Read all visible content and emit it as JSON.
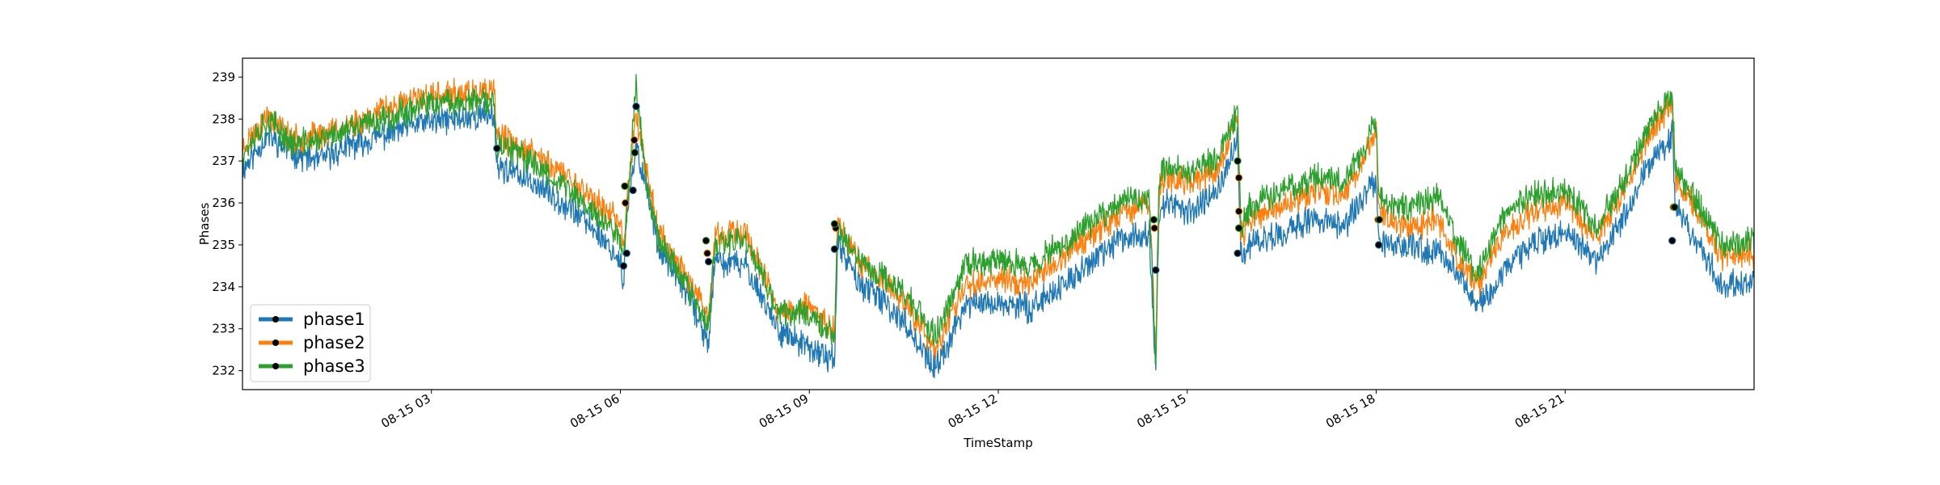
{
  "chart_data": {
    "type": "line",
    "title": "",
    "xlabel": "TimeStamp",
    "ylabel": "Phases",
    "x_tick_labels": [
      "08-15 03",
      "08-15 06",
      "08-15 09",
      "08-15 12",
      "08-15 15",
      "08-15 18",
      "08-15 21"
    ],
    "y_ticks": [
      232,
      233,
      234,
      235,
      236,
      237,
      238,
      239
    ],
    "ylim": [
      231.55,
      239.45
    ],
    "grid": false,
    "legend_position": "lower-left",
    "colors": {
      "phase1": "#1f77b4",
      "phase2": "#ff7f0e",
      "phase3": "#2ca02c",
      "marker": "#000000"
    },
    "x_unit": "hour",
    "xlim": [
      0.0,
      24.0
    ],
    "series": [
      {
        "name": "phase1",
        "x": [
          0.0,
          0.4,
          0.8,
          1.2,
          1.6,
          2.2,
          2.8,
          3.4,
          4.0,
          4.04,
          4.6,
          5.2,
          5.7,
          6.0,
          6.05,
          6.1,
          6.25,
          6.4,
          6.6,
          7.0,
          7.4,
          7.5,
          8.0,
          8.5,
          9.0,
          9.4,
          9.45,
          9.8,
          10.5,
          11.0,
          11.5,
          12.0,
          12.5,
          13.0,
          13.5,
          14.0,
          14.4,
          14.5,
          14.55,
          14.6,
          15.0,
          15.5,
          15.8,
          15.85,
          16.0,
          16.5,
          17.0,
          17.5,
          18.0,
          18.04,
          18.5,
          19.0,
          19.3,
          19.4,
          19.6,
          20.0,
          20.5,
          21.0,
          21.5,
          22.0,
          22.3,
          22.7,
          22.75,
          23.0,
          23.5,
          24.0
        ],
        "values": [
          236.8,
          237.6,
          237.2,
          237.0,
          237.3,
          237.6,
          237.9,
          238.0,
          238.1,
          236.9,
          236.5,
          235.9,
          235.2,
          234.6,
          234.0,
          235.7,
          237.3,
          236.5,
          235.0,
          234.0,
          232.7,
          234.6,
          234.5,
          233.0,
          232.5,
          232.3,
          235.0,
          234.1,
          233.2,
          232.0,
          233.6,
          233.6,
          233.5,
          234.0,
          234.6,
          235.2,
          235.3,
          232.0,
          235.7,
          236.0,
          235.8,
          236.3,
          237.5,
          234.8,
          235.0,
          235.3,
          235.6,
          235.5,
          236.5,
          235.0,
          235.0,
          234.8,
          234.4,
          234.1,
          233.5,
          234.3,
          235.1,
          235.3,
          234.6,
          235.8,
          236.9,
          237.6,
          236.1,
          235.3,
          234.0,
          234.2
        ]
      },
      {
        "name": "phase2",
        "x": [
          0.0,
          0.4,
          0.8,
          1.2,
          1.6,
          2.2,
          2.8,
          3.4,
          4.0,
          4.04,
          4.6,
          5.2,
          5.7,
          6.0,
          6.05,
          6.1,
          6.25,
          6.4,
          6.6,
          7.0,
          7.4,
          7.5,
          8.0,
          8.5,
          9.0,
          9.4,
          9.45,
          9.8,
          10.5,
          11.0,
          11.5,
          12.0,
          12.5,
          13.0,
          13.5,
          14.0,
          14.4,
          14.5,
          14.55,
          14.6,
          15.0,
          15.5,
          15.8,
          15.85,
          16.0,
          16.5,
          17.0,
          17.5,
          18.0,
          18.04,
          18.5,
          19.0,
          19.3,
          19.4,
          19.6,
          20.0,
          20.5,
          21.0,
          21.5,
          22.0,
          22.3,
          22.7,
          22.75,
          23.0,
          23.5,
          24.0
        ],
        "values": [
          237.3,
          238.1,
          237.5,
          237.6,
          237.8,
          238.2,
          238.5,
          238.6,
          238.6,
          237.6,
          237.2,
          236.6,
          235.9,
          235.5,
          234.9,
          236.0,
          238.2,
          236.9,
          235.3,
          234.4,
          233.2,
          235.2,
          235.3,
          233.4,
          233.5,
          233.0,
          235.6,
          234.6,
          233.7,
          232.5,
          234.1,
          234.2,
          234.1,
          234.7,
          235.3,
          235.8,
          236.0,
          232.5,
          236.2,
          236.6,
          236.5,
          236.8,
          238.0,
          235.2,
          235.6,
          235.9,
          236.3,
          236.2,
          237.7,
          235.8,
          235.4,
          235.6,
          234.6,
          234.5,
          234.0,
          235.2,
          235.8,
          236.0,
          235.2,
          236.5,
          237.5,
          238.4,
          236.6,
          236.0,
          234.7,
          234.8
        ]
      },
      {
        "name": "phase3",
        "x": [
          0.0,
          0.4,
          0.8,
          1.2,
          1.6,
          2.2,
          2.8,
          3.4,
          4.0,
          4.04,
          4.6,
          5.2,
          5.7,
          6.0,
          6.05,
          6.1,
          6.25,
          6.4,
          6.6,
          7.0,
          7.4,
          7.5,
          8.0,
          8.5,
          9.0,
          9.4,
          9.45,
          9.8,
          10.5,
          11.0,
          11.5,
          12.0,
          12.5,
          13.0,
          13.5,
          14.0,
          14.4,
          14.5,
          14.55,
          14.6,
          15.0,
          15.5,
          15.8,
          15.85,
          16.0,
          16.5,
          17.0,
          17.5,
          18.0,
          18.04,
          18.5,
          19.0,
          19.3,
          19.4,
          19.6,
          20.0,
          20.5,
          21.0,
          21.5,
          22.0,
          22.3,
          22.7,
          22.75,
          23.0,
          23.5,
          24.0
        ],
        "values": [
          237.2,
          238.0,
          237.4,
          237.5,
          237.7,
          238.0,
          238.3,
          238.4,
          238.4,
          237.4,
          237.0,
          236.3,
          235.6,
          235.2,
          234.6,
          235.8,
          238.8,
          236.7,
          235.2,
          234.2,
          233.0,
          235.0,
          235.1,
          233.4,
          233.4,
          232.8,
          235.4,
          234.6,
          233.9,
          232.8,
          234.6,
          234.6,
          234.5,
          235.0,
          235.6,
          236.1,
          236.0,
          232.2,
          236.5,
          236.9,
          236.7,
          237.1,
          238.2,
          235.4,
          235.9,
          236.3,
          236.6,
          236.5,
          237.9,
          236.1,
          235.9,
          236.2,
          235.0,
          234.8,
          234.3,
          235.6,
          236.2,
          236.3,
          235.4,
          236.7,
          237.7,
          238.6,
          236.8,
          236.2,
          235.0,
          235.1
        ]
      }
    ],
    "markers": [
      {
        "series": "phase1",
        "x": 4.04,
        "y": 237.3
      },
      {
        "series": "phase1",
        "x": 6.05,
        "y": 234.5
      },
      {
        "series": "phase1",
        "x": 6.1,
        "y": 234.8
      },
      {
        "series": "phase1",
        "x": 6.2,
        "y": 236.3
      },
      {
        "series": "phase1",
        "x": 6.25,
        "y": 238.3
      },
      {
        "series": "phase1",
        "x": 7.4,
        "y": 234.6
      },
      {
        "series": "phase1",
        "x": 9.4,
        "y": 234.9
      },
      {
        "series": "phase1",
        "x": 14.5,
        "y": 234.4
      },
      {
        "series": "phase1",
        "x": 15.8,
        "y": 234.8
      },
      {
        "series": "phase1",
        "x": 18.04,
        "y": 235.0
      },
      {
        "series": "phase1",
        "x": 22.7,
        "y": 235.1
      },
      {
        "series": "phase2",
        "x": 6.08,
        "y": 236.0
      },
      {
        "series": "phase2",
        "x": 6.22,
        "y": 237.5
      },
      {
        "series": "phase2",
        "x": 7.38,
        "y": 234.8
      },
      {
        "series": "phase2",
        "x": 9.42,
        "y": 235.4
      },
      {
        "series": "phase2",
        "x": 14.48,
        "y": 235.4
      },
      {
        "series": "phase2",
        "x": 15.82,
        "y": 235.8
      },
      {
        "series": "phase2",
        "x": 15.82,
        "y": 236.6
      },
      {
        "series": "phase2",
        "x": 18.03,
        "y": 235.6
      },
      {
        "series": "phase2",
        "x": 22.72,
        "y": 235.9
      },
      {
        "series": "phase3",
        "x": 6.07,
        "y": 236.4
      },
      {
        "series": "phase3",
        "x": 6.23,
        "y": 237.2
      },
      {
        "series": "phase3",
        "x": 7.36,
        "y": 235.1
      },
      {
        "series": "phase3",
        "x": 9.4,
        "y": 235.5
      },
      {
        "series": "phase3",
        "x": 14.47,
        "y": 235.6
      },
      {
        "series": "phase3",
        "x": 15.8,
        "y": 237.0
      },
      {
        "series": "phase3",
        "x": 15.82,
        "y": 235.4
      },
      {
        "series": "phase3",
        "x": 18.05,
        "y": 235.6
      },
      {
        "series": "phase3",
        "x": 22.74,
        "y": 235.9
      }
    ]
  }
}
